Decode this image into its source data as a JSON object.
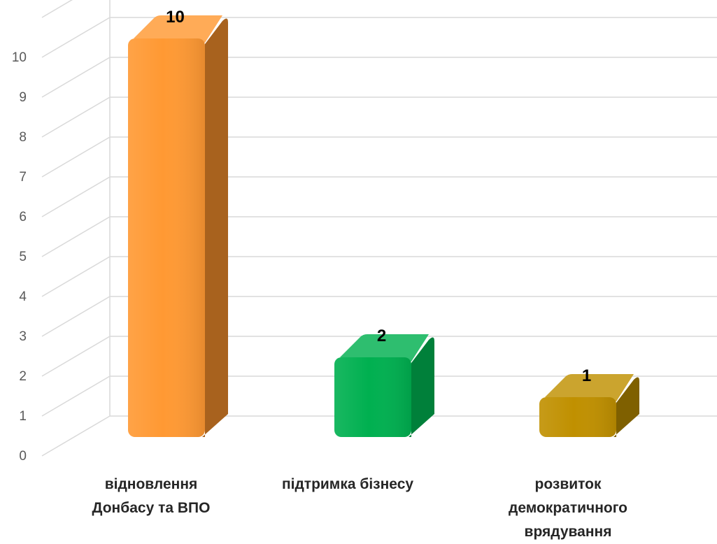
{
  "chart_data": {
    "type": "bar",
    "style": "3d-column",
    "title": "",
    "xlabel": "",
    "ylabel": "",
    "categories": [
      "відновлення Донбасу та ВПО",
      "підтримка бізнесу",
      "розвиток демократичного врядування"
    ],
    "category_lines": [
      [
        "відновлення",
        "Донбасу та ВПО"
      ],
      [
        "підтримка бізнесу"
      ],
      [
        "розвиток",
        "демократичного",
        "врядування"
      ]
    ],
    "values": [
      10,
      2,
      1
    ],
    "data_labels": [
      "10",
      "2",
      "1"
    ],
    "colors": [
      "#FF9933",
      "#00B050",
      "#C09000"
    ],
    "side_colors": [
      "#A8621E",
      "#00803A",
      "#7F6000"
    ],
    "ylim": [
      0,
      10
    ],
    "yticks": [
      0,
      1,
      2,
      3,
      4,
      5,
      6,
      7,
      8,
      9,
      10
    ],
    "grid": true,
    "legend": "none"
  }
}
